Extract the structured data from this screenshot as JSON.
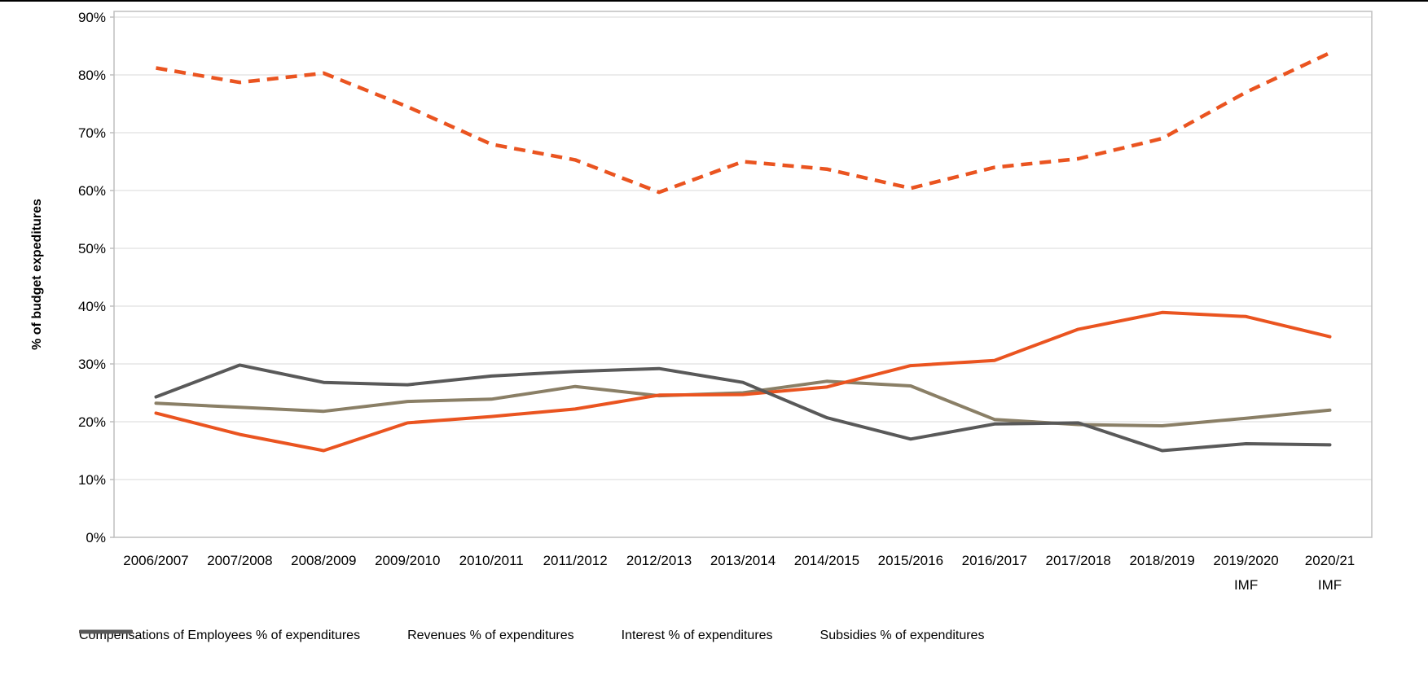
{
  "chart_data": {
    "type": "line",
    "title": "",
    "xlabel": "",
    "ylabel": "% of budget expeditures",
    "ylim": [
      0,
      90
    ],
    "ytick_step": 10,
    "ytick_suffix": "%",
    "grid": "horizontal",
    "legend_position": "bottom",
    "categories": [
      "2006/2007",
      "2007/2008",
      "2008/2009",
      "2009/2010",
      "2010/2011",
      "2011/2012",
      "2012/2013",
      "2013/2014",
      "2014/2015",
      "2015/2016",
      "2016/2017",
      "2017/2018",
      "2018/2019",
      "2019/2020",
      "2020/21"
    ],
    "category_sublabels": [
      "",
      "",
      "",
      "",
      "",
      "",
      "",
      "",
      "",
      "",
      "",
      "",
      "",
      "IMF",
      "IMF"
    ],
    "series": [
      {
        "name": "Compensations of Employees % of expenditures",
        "color": "#8A7F66",
        "style": "solid",
        "values": [
          23.2,
          22.5,
          21.8,
          23.5,
          23.9,
          26.1,
          24.5,
          25.0,
          27.0,
          26.2,
          20.4,
          19.5,
          19.3,
          20.6,
          22.0
        ]
      },
      {
        "name": "Revenues % of expenditures",
        "color": "#EA5420",
        "style": "dashed",
        "values": [
          81.2,
          78.7,
          80.3,
          74.5,
          68.0,
          65.3,
          59.7,
          65.0,
          63.7,
          60.4,
          64.0,
          65.5,
          69.0,
          77.0,
          83.8
        ]
      },
      {
        "name": "Interest % of expenditures",
        "color": "#EA5420",
        "style": "solid",
        "values": [
          21.5,
          17.8,
          15.0,
          19.8,
          20.9,
          22.2,
          24.6,
          24.7,
          26.0,
          29.7,
          30.6,
          36.0,
          38.9,
          38.2,
          34.7
        ]
      },
      {
        "name": "Subsidies % of expenditures",
        "color": "#595959",
        "style": "solid",
        "values": [
          24.3,
          29.8,
          26.8,
          26.4,
          27.9,
          28.7,
          29.2,
          26.8,
          20.7,
          17.0,
          19.6,
          19.8,
          15.0,
          16.2,
          16.0
        ]
      }
    ],
    "colors": {
      "gridline": "#D9D9D9",
      "plot_border": "#BFBFBF",
      "tick_text": "#000000",
      "top_line": "#000000"
    }
  }
}
